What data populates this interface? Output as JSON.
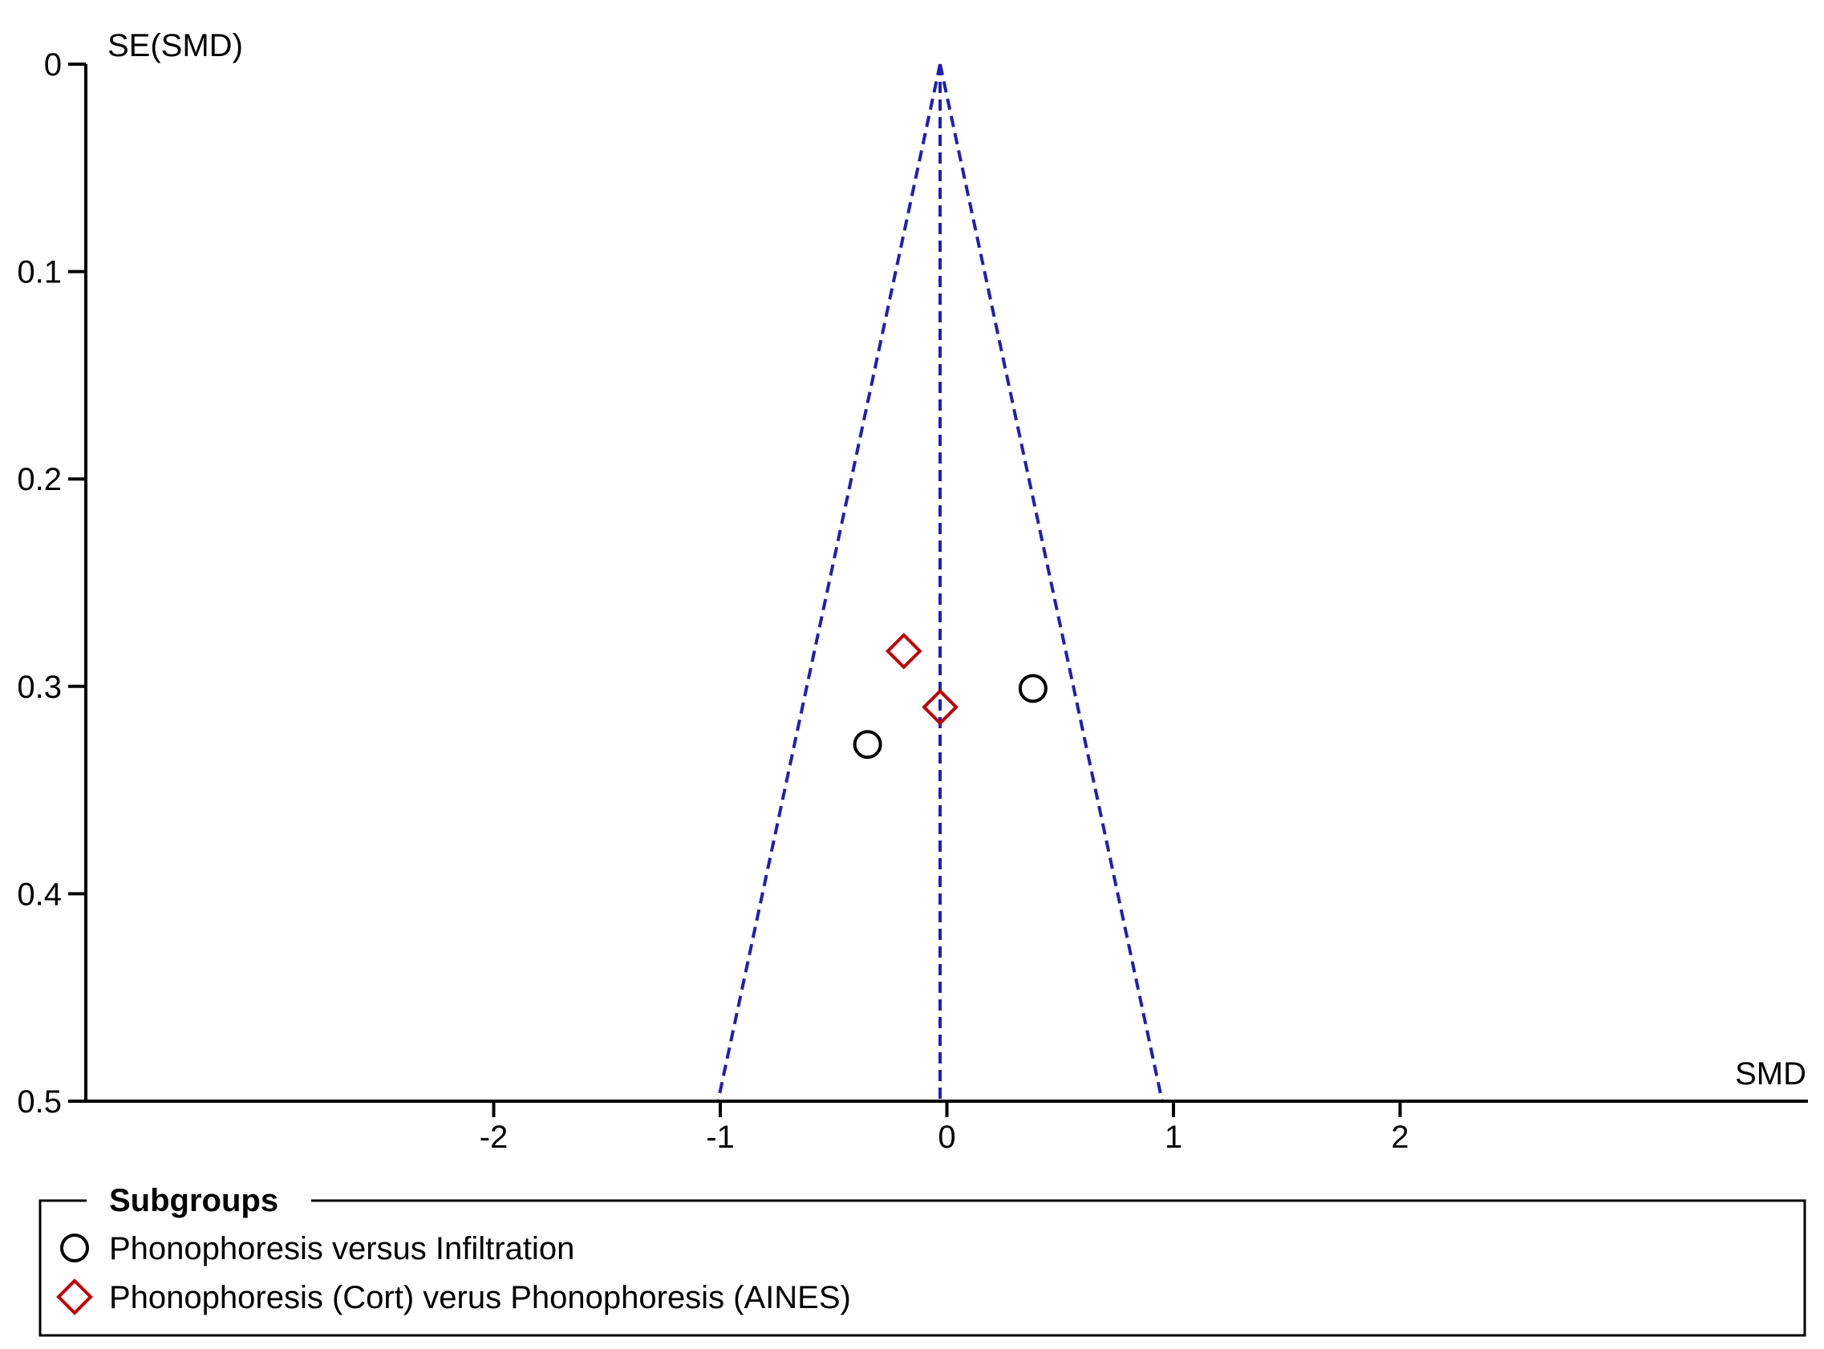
{
  "chart_data": {
    "type": "scatter",
    "subtype": "funnel plot",
    "xlabel": "SMD",
    "ylabel": "SE(SMD)",
    "xlim": [
      -3.8,
      3.8
    ],
    "ylim": [
      0,
      0.5
    ],
    "y_reversed": true,
    "x_ticks": [
      "-2",
      "-1",
      "0",
      "1",
      "2"
    ],
    "x_tick_values": [
      -2,
      -1,
      0,
      1,
      2
    ],
    "y_ticks": [
      "0",
      "0.1",
      "0.2",
      "0.3",
      "0.4",
      "0.5"
    ],
    "y_tick_values": [
      0,
      0.1,
      0.2,
      0.3,
      0.4,
      0.5
    ],
    "grid": false,
    "funnel": {
      "pooled_estimate": -0.03,
      "se_max": 0.5,
      "line_color": "#1f1fb4",
      "line_style": "dashed"
    },
    "series": [
      {
        "name": "Phonophoresis versus Infiltration",
        "marker": "circle",
        "color": "#000000",
        "points": [
          {
            "x": -0.35,
            "y": 0.328
          },
          {
            "x": 0.38,
            "y": 0.301
          }
        ]
      },
      {
        "name": "Phonophoresis (Cort) verus Phonophoresis (AINES)",
        "marker": "diamond",
        "color": "#c00000",
        "points": [
          {
            "x": -0.19,
            "y": 0.283
          },
          {
            "x": -0.03,
            "y": 0.31
          }
        ]
      }
    ],
    "legend": {
      "title": "Subgroups",
      "placement": "bottom"
    }
  }
}
